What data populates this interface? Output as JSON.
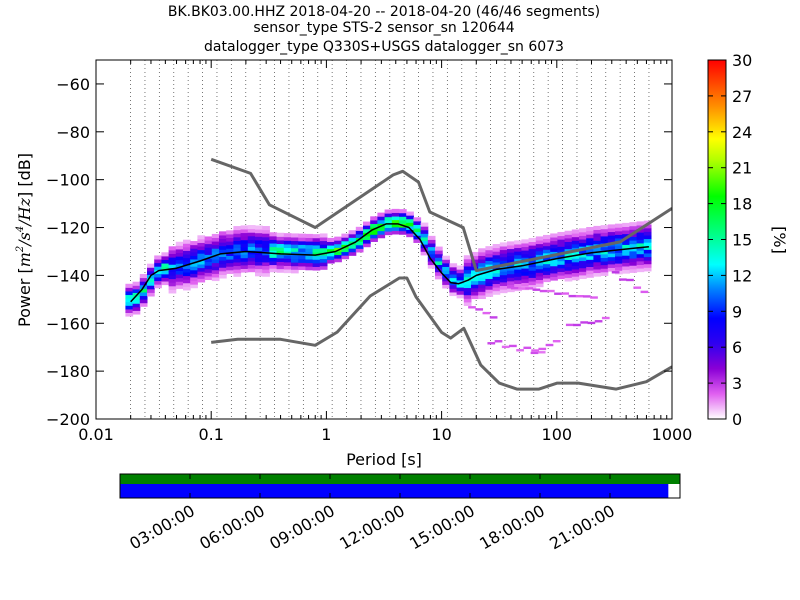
{
  "title": {
    "line1": "BK.BK03.00.HHZ   2018-04-20 -- 2018-04-20  (46/46 segments)",
    "line2": "sensor_type STS-2 sensor_sn 120644",
    "line3": "datalogger_type Q330S+USGS datalogger_sn 6073"
  },
  "chart_data": [
    {
      "type": "heatmap",
      "xlabel": "Period [s]",
      "ylabel": {
        "prefix": "Power [",
        "m": "m",
        "m_exp": "2",
        "slash1": "/",
        "s": "s",
        "s_exp": "4",
        "slash2": "/",
        "hz": "Hz",
        "suffix": "] [dB]"
      },
      "x_scale": "log",
      "xlim": [
        0.01,
        1000
      ],
      "ylim": [
        -200,
        -50
      ],
      "x_ticks": [
        {
          "v": 0.01,
          "label": "0.01"
        },
        {
          "v": 0.1,
          "label": "0.1"
        },
        {
          "v": 1,
          "label": "1"
        },
        {
          "v": 10,
          "label": "10"
        },
        {
          "v": 100,
          "label": "100"
        },
        {
          "v": 1000,
          "label": "1000"
        }
      ],
      "y_ticks": [
        {
          "v": -200,
          "label": "−200"
        },
        {
          "v": -180,
          "label": "−180"
        },
        {
          "v": -160,
          "label": "−160"
        },
        {
          "v": -140,
          "label": "−140"
        },
        {
          "v": -120,
          "label": "−120"
        },
        {
          "v": -100,
          "label": "−100"
        },
        {
          "v": -80,
          "label": "−80"
        },
        {
          "v": -60,
          "label": "−60"
        }
      ],
      "grid": "dotted vertical lines at period bins",
      "colorbar": {
        "label": "[%]",
        "min": 0,
        "max": 30,
        "ticks": [
          {
            "v": 0,
            "label": "0"
          },
          {
            "v": 3,
            "label": "3"
          },
          {
            "v": 6,
            "label": "6"
          },
          {
            "v": 9,
            "label": "9"
          },
          {
            "v": 12,
            "label": "12"
          },
          {
            "v": 15,
            "label": "15"
          },
          {
            "v": 18,
            "label": "18"
          },
          {
            "v": 21,
            "label": "21"
          },
          {
            "v": 24,
            "label": "24"
          },
          {
            "v": 27,
            "label": "27"
          },
          {
            "v": 30,
            "label": "30"
          }
        ],
        "colormap": [
          "#ffffff",
          "#8a00d6",
          "#0000ff",
          "#00ffff",
          "#00ff00",
          "#ffff00",
          "#ff8000",
          "#ff0000"
        ]
      },
      "noise_model_high": {
        "color": "#666666",
        "periods": [
          0.1,
          0.22,
          0.32,
          0.8,
          3.8,
          4.6,
          6.3,
          7.9,
          15.4,
          20,
          354.8,
          1000
        ],
        "db": [
          -91.5,
          -97.4,
          -110.5,
          -120,
          -98,
          -96.5,
          -101,
          -113.5,
          -120,
          -138,
          -126,
          -112
        ]
      },
      "noise_model_low": {
        "color": "#666666",
        "periods": [
          0.1,
          0.17,
          0.4,
          0.8,
          1.24,
          2.4,
          4.3,
          5,
          6,
          10,
          12,
          15.6,
          21.9,
          31.6,
          45,
          70,
          101,
          154,
          328,
          600,
          1000
        ],
        "db": [
          -168,
          -166.7,
          -166.7,
          -169.2,
          -163.7,
          -148.6,
          -141.1,
          -141.1,
          -149,
          -163.8,
          -166.2,
          -162.1,
          -177.5,
          -185,
          -187.5,
          -187.5,
          -185,
          -185,
          -187.5,
          -184.4,
          -178.2
        ]
      },
      "mode_curve": {
        "color": "#000000",
        "periods": [
          0.02,
          0.025,
          0.03,
          0.035,
          0.05,
          0.08,
          0.12,
          0.2,
          0.4,
          0.8,
          1.2,
          1.8,
          2.5,
          3.3,
          4.2,
          5.2,
          6.5,
          8,
          10,
          12,
          14,
          17,
          20,
          30,
          50,
          100,
          200,
          500,
          630
        ],
        "db": [
          -151,
          -146,
          -140,
          -138,
          -137,
          -134,
          -131,
          -130,
          -131,
          -131.5,
          -130,
          -126,
          -121,
          -118.5,
          -118.5,
          -120,
          -125,
          -133,
          -139,
          -143,
          -143.5,
          -142,
          -140,
          -137.5,
          -136,
          -133,
          -130.5,
          -128.5,
          -128
        ]
      },
      "distribution_bands": [
        {
          "p_min": 0.018,
          "p_max": 0.04,
          "center_db": [
            -151,
            -141
          ],
          "spread_db": 5,
          "peak_pct": 14
        },
        {
          "p_min": 0.04,
          "p_max": 0.3,
          "center_db": [
            -138,
            -131
          ],
          "spread_db": 8,
          "peak_pct": 10
        },
        {
          "p_min": 0.3,
          "p_max": 1.0,
          "center_db": [
            -131,
            -131.5
          ],
          "spread_db": 6,
          "peak_pct": 14
        },
        {
          "p_min": 1.0,
          "p_max": 6.0,
          "center_db": [
            -130,
            -118.5
          ],
          "spread_db": 4,
          "peak_pct": 18
        },
        {
          "p_min": 6.0,
          "p_max": 15.0,
          "center_db": [
            -125,
            -143.5
          ],
          "spread_db": 5,
          "peak_pct": 12
        },
        {
          "p_min": 15.0,
          "p_max": 630.0,
          "center_db": [
            -142,
            -128
          ],
          "spread_db": 8,
          "peak_pct": 12
        }
      ],
      "outlier_patches": [
        {
          "p_min": 17,
          "p_max": 30,
          "db": [
            -154,
            -160
          ]
        },
        {
          "p_min": 25,
          "p_max": 70,
          "db": [
            -168,
            -173
          ]
        },
        {
          "p_min": 60,
          "p_max": 100,
          "db": [
            -172,
            -168
          ]
        },
        {
          "p_min": 120,
          "p_max": 250,
          "db": [
            -162,
            -158
          ]
        },
        {
          "p_min": 40,
          "p_max": 200,
          "db": [
            -146,
            -150
          ]
        },
        {
          "p_min": 300,
          "p_max": 600,
          "db": [
            -140,
            -148
          ]
        }
      ]
    },
    {
      "type": "timeline",
      "tick_labels": [
        "03:00:00",
        "06:00:00",
        "09:00:00",
        "12:00:00",
        "15:00:00",
        "18:00:00",
        "21:00:00"
      ],
      "tick_hours": [
        3,
        6,
        9,
        12,
        15,
        18,
        21
      ],
      "span_hours": 24,
      "data_coverage": {
        "color": "#008000",
        "start_hour": 0,
        "end_hour": 24
      },
      "psd_coverage": {
        "color": "#0000ff",
        "start_hour": 0,
        "end_hour": 23.5
      }
    }
  ]
}
